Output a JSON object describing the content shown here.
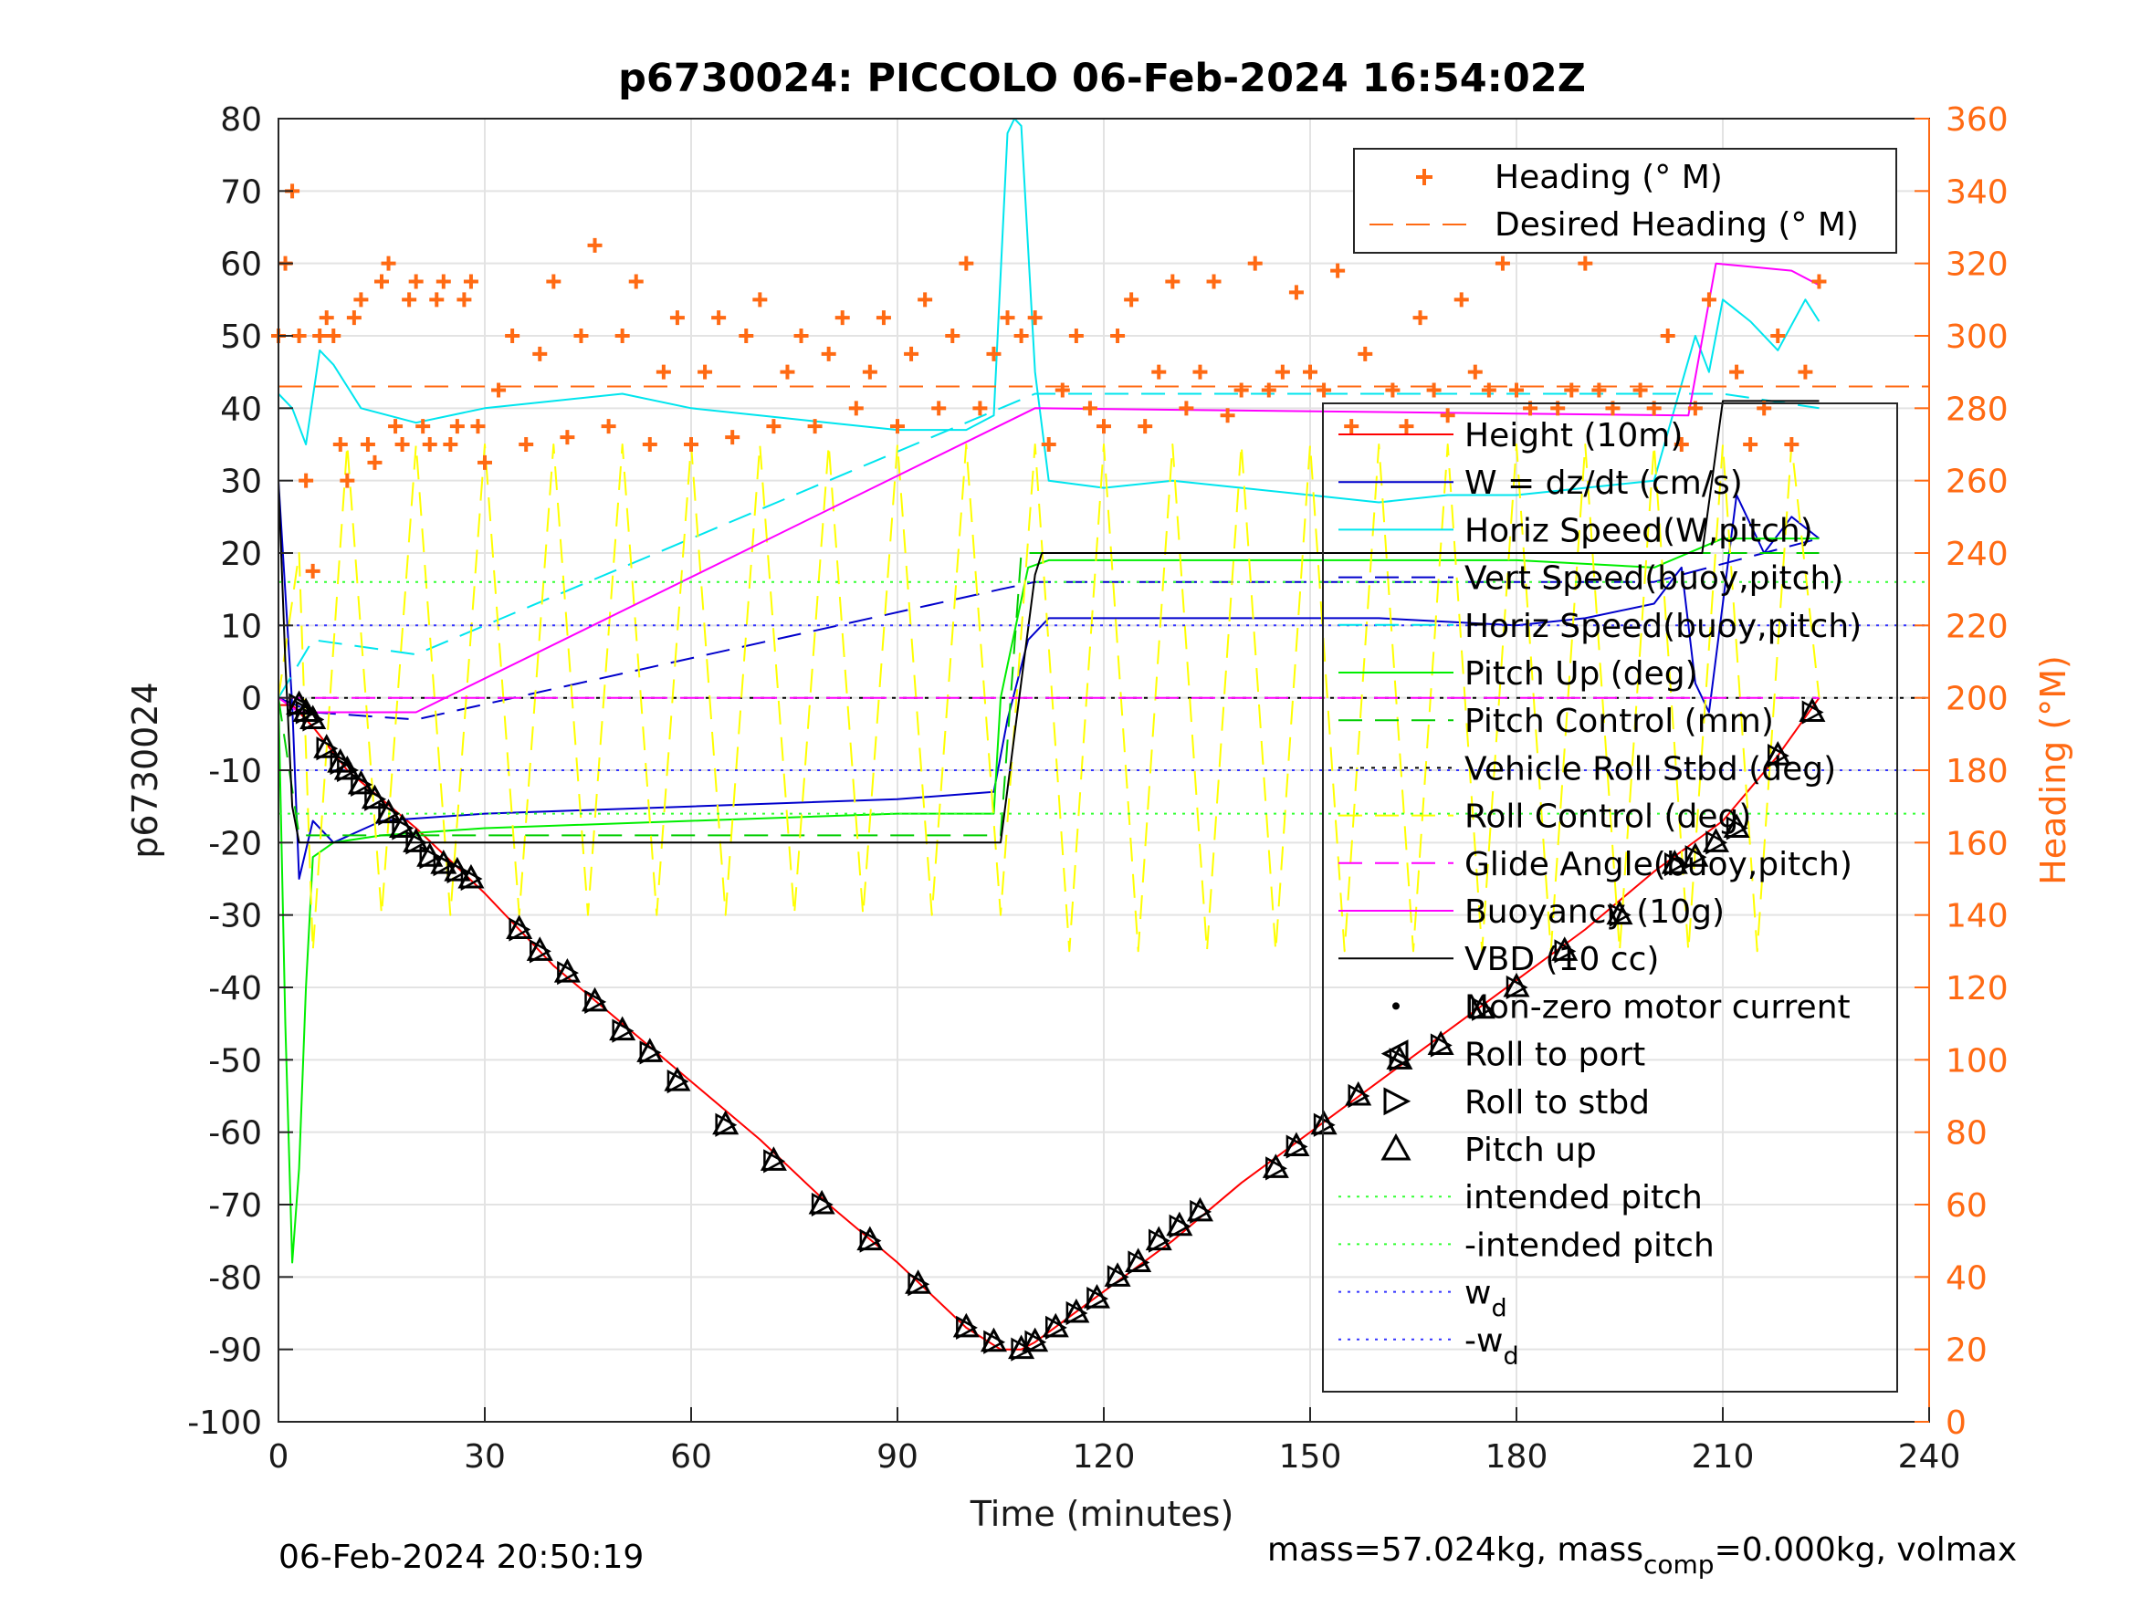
{
  "chart_data": {
    "type": "line",
    "title": "p6730024: PICCOLO 06-Feb-2024 16:54:02Z",
    "xlabel": "Time (minutes)",
    "ylabel_left": "p6730024",
    "ylabel_right": "Heading (°M)",
    "xlim": [
      0,
      240
    ],
    "ylim_left": [
      -100,
      80
    ],
    "ylim_right": [
      0,
      360
    ],
    "x_ticks": [
      "0",
      "30",
      "60",
      "90",
      "120",
      "150",
      "180",
      "210",
      "240"
    ],
    "y_ticks_left": [
      "80",
      "70",
      "60",
      "50",
      "40",
      "30",
      "20",
      "10",
      "0",
      "-10",
      "-20",
      "-30",
      "-40",
      "-50",
      "-60",
      "-70",
      "-80",
      "-90",
      "-100"
    ],
    "y_ticks_right": [
      "360",
      "340",
      "320",
      "300",
      "280",
      "260",
      "240",
      "220",
      "200",
      "180",
      "160",
      "140",
      "120",
      "100",
      "80",
      "60",
      "40",
      "20",
      "0"
    ],
    "grid": true,
    "colors": {
      "heading": "#ff6a13",
      "height": "#ff0000",
      "w": "#0000cc",
      "horiz_speed_w": "#00e5ee",
      "vert_speed_buoy": "#0000cc",
      "horiz_speed_buoy": "#00e5ee",
      "pitch": "#00ee00",
      "pitch_control": "#00cc00",
      "roll": "#000000",
      "roll_control": "#ffff00",
      "glide_angle": "#ff00ff",
      "buoyancy": "#ff00ff",
      "vbd": "#000000",
      "intended_pitch": "#33ff33",
      "wd": "#3333ff"
    },
    "legend_top": {
      "placement": "top-right",
      "entries": [
        "Heading (° M)",
        "Desired Heading (° M)"
      ]
    },
    "legend_main": {
      "placement": "right",
      "entries": [
        "Height (10m)",
        "W = dz/dt (cm/s)",
        "Horiz Speed(W,pitch)",
        "Vert Speed(buoy,pitch)",
        "Horiz Speed(buoy,pitch)",
        "Pitch Up (deg)",
        "Pitch Control (mm)",
        "Vehicle Roll Stbd (deg)",
        "Roll Control (deg)",
        "Glide Angle(buoy,pitch)",
        "Buoyancy (10g)",
        "VBD (10 cc)",
        "Non-zero motor current",
        "Roll to port",
        "Roll to stbd",
        "Pitch up",
        "intended pitch",
        "-intended pitch",
        "w",
        "-w"
      ],
      "subscripts": {
        "w": "d",
        "-w": "d"
      }
    },
    "series": [
      {
        "name": "Height (10m)",
        "axis": "left",
        "x": [
          0,
          2,
          5,
          10,
          20,
          30,
          40,
          50,
          60,
          70,
          80,
          90,
          100,
          105,
          108,
          110,
          120,
          130,
          140,
          150,
          160,
          170,
          180,
          190,
          200,
          210,
          218,
          224
        ],
        "y": [
          -1,
          -1,
          -4,
          -10,
          -18,
          -27,
          -37,
          -45,
          -53,
          -61,
          -70,
          -78,
          -87,
          -90,
          -90,
          -89,
          -82,
          -75,
          -67,
          -60,
          -53,
          -46,
          -39,
          -32,
          -24,
          -17,
          -8,
          0
        ]
      },
      {
        "name": "W = dz/dt (cm/s)",
        "axis": "left",
        "x": [
          0,
          2,
          3,
          5,
          8,
          15,
          30,
          60,
          90,
          104,
          106,
          109,
          112,
          120,
          140,
          160,
          180,
          190,
          200,
          204,
          206,
          208,
          212,
          216,
          220,
          224
        ],
        "y": [
          30,
          -1,
          -25,
          -17,
          -20,
          -17,
          -16,
          -15,
          -14,
          -13,
          -3,
          8,
          11,
          11,
          11,
          11,
          10,
          11,
          13,
          18,
          2,
          -2,
          28,
          20,
          25,
          22
        ]
      },
      {
        "name": "Horiz Speed(W,pitch)",
        "axis": "left",
        "x": [
          0,
          2,
          4,
          6,
          8,
          12,
          20,
          30,
          40,
          50,
          60,
          70,
          80,
          90,
          100,
          104,
          106,
          107,
          108,
          110,
          112,
          120,
          130,
          140,
          150,
          160,
          170,
          180,
          190,
          200,
          203,
          206,
          208,
          210,
          214,
          218,
          222,
          224
        ],
        "y": [
          42,
          40,
          35,
          48,
          46,
          40,
          38,
          40,
          41,
          42,
          40,
          39,
          38,
          37,
          37,
          39,
          78,
          80,
          79,
          45,
          30,
          29,
          30,
          29,
          28,
          27,
          28,
          28,
          29,
          30,
          40,
          50,
          45,
          55,
          52,
          48,
          55,
          52
        ]
      },
      {
        "name": "Vert Speed(buoy,pitch)",
        "axis": "left",
        "x": [
          0,
          5,
          20,
          105,
          110,
          120,
          200,
          224
        ],
        "y": [
          0,
          -2,
          -3,
          15,
          16,
          16,
          16,
          22
        ]
      },
      {
        "name": "Horiz Speed(buoy,pitch)",
        "axis": "left",
        "x": [
          0,
          5,
          20,
          105,
          110,
          210,
          224
        ],
        "y": [
          0,
          8,
          6,
          40,
          42,
          42,
          40
        ]
      },
      {
        "name": "Pitch Up (deg)",
        "axis": "left",
        "x": [
          0,
          1,
          2,
          3,
          4,
          5,
          8,
          15,
          30,
          60,
          90,
          104,
          105,
          109,
          112,
          120,
          150,
          180,
          200,
          210,
          224
        ],
        "y": [
          0,
          -45,
          -78,
          -65,
          -40,
          -22,
          -20,
          -19,
          -18,
          -17,
          -16,
          -16,
          0,
          18,
          19,
          19,
          19,
          19,
          18,
          22,
          22
        ]
      },
      {
        "name": "Pitch Control (mm)",
        "axis": "left",
        "x": [
          0,
          3,
          5,
          105,
          108,
          224
        ],
        "y": [
          0,
          -19,
          -19,
          -19,
          20,
          20
        ]
      },
      {
        "name": "Vehicle Roll Stbd (deg)",
        "axis": "left",
        "x": [
          0,
          240
        ],
        "y": [
          0,
          0
        ]
      },
      {
        "name": "Roll Control (deg)",
        "axis": "left",
        "x": [
          0,
          3,
          5,
          10,
          15,
          20,
          25,
          30,
          35,
          40,
          45,
          50,
          55,
          60,
          65,
          70,
          75,
          80,
          85,
          90,
          95,
          100,
          105,
          110,
          115,
          120,
          125,
          130,
          135,
          140,
          145,
          150,
          155,
          160,
          165,
          170,
          175,
          180,
          185,
          190,
          195,
          200,
          205,
          210,
          215,
          220,
          224
        ],
        "y": [
          0,
          20,
          -35,
          35,
          -30,
          35,
          -30,
          35,
          -30,
          35,
          -30,
          35,
          -30,
          35,
          -30,
          35,
          -30,
          35,
          -30,
          35,
          -30,
          35,
          -30,
          35,
          -35,
          35,
          -35,
          35,
          -35,
          35,
          -35,
          35,
          -35,
          35,
          -35,
          35,
          -35,
          35,
          -35,
          35,
          -35,
          35,
          -35,
          35,
          -35,
          35,
          0
        ]
      },
      {
        "name": "Glide Angle(buoy,pitch)",
        "axis": "left",
        "x": [
          0,
          5,
          104,
          110,
          224
        ],
        "y": [
          0,
          0,
          0,
          0,
          0
        ]
      },
      {
        "name": "Buoyancy (10g)",
        "axis": "left",
        "x": [
          0,
          3,
          20,
          110,
          205,
          209,
          220,
          224
        ],
        "y": [
          0,
          -2,
          -2,
          40,
          39,
          60,
          59,
          57
        ]
      },
      {
        "name": "VBD (10 cc)",
        "axis": "left",
        "x": [
          0,
          1,
          2,
          3,
          105,
          110,
          111,
          207,
          210,
          224
        ],
        "y": [
          30,
          5,
          -15,
          -20,
          -20,
          17,
          20,
          20,
          41,
          41
        ]
      },
      {
        "name": "intended pitch",
        "axis": "left",
        "x": [
          0,
          240
        ],
        "y": [
          16,
          16
        ]
      },
      {
        "name": "-intended pitch",
        "axis": "left",
        "x": [
          0,
          240
        ],
        "y": [
          -16,
          -16
        ]
      },
      {
        "name": "w_d",
        "axis": "left",
        "x": [
          0,
          240
        ],
        "y": [
          10,
          10
        ]
      },
      {
        "name": "-w_d",
        "axis": "left",
        "x": [
          0,
          240
        ],
        "y": [
          -10,
          -10
        ]
      },
      {
        "name": "Desired Heading (° M)",
        "axis": "right",
        "x": [
          0,
          240
        ],
        "y": [
          286,
          286
        ]
      }
    ],
    "heading_points": {
      "name": "Heading (° M)",
      "axis": "right",
      "x": [
        0,
        1,
        2,
        3,
        4,
        5,
        6,
        7,
        8,
        9,
        10,
        11,
        12,
        13,
        14,
        15,
        16,
        17,
        18,
        19,
        20,
        21,
        22,
        23,
        24,
        25,
        26,
        27,
        28,
        29,
        30,
        32,
        34,
        36,
        38,
        40,
        42,
        44,
        46,
        48,
        50,
        52,
        54,
        56,
        58,
        60,
        62,
        64,
        66,
        68,
        70,
        72,
        74,
        76,
        78,
        80,
        82,
        84,
        86,
        88,
        90,
        92,
        94,
        96,
        98,
        100,
        102,
        104,
        106,
        108,
        110,
        112,
        114,
        116,
        118,
        120,
        122,
        124,
        126,
        128,
        130,
        132,
        134,
        136,
        138,
        140,
        142,
        144,
        146,
        148,
        150,
        152,
        154,
        156,
        158,
        160,
        162,
        164,
        166,
        168,
        170,
        172,
        174,
        176,
        178,
        180,
        182,
        184,
        186,
        188,
        190,
        192,
        194,
        196,
        198,
        200,
        202,
        204,
        206,
        208,
        210,
        212,
        214,
        216,
        218,
        220,
        222,
        224
      ],
      "y": [
        300,
        320,
        340,
        300,
        260,
        235,
        300,
        305,
        300,
        270,
        260,
        305,
        310,
        270,
        265,
        315,
        320,
        275,
        270,
        310,
        315,
        275,
        270,
        310,
        315,
        270,
        275,
        310,
        315,
        275,
        265,
        285,
        300,
        270,
        295,
        315,
        272,
        300,
        325,
        275,
        300,
        315,
        270,
        290,
        305,
        270,
        290,
        305,
        272,
        300,
        310,
        275,
        290,
        300,
        275,
        295,
        305,
        280,
        290,
        305,
        275,
        295,
        310,
        280,
        300,
        320,
        280,
        295,
        305,
        300,
        305,
        270,
        285,
        300,
        280,
        275,
        300,
        310,
        275,
        290,
        315,
        280,
        290,
        315,
        278,
        285,
        320,
        285,
        290,
        312,
        290,
        285,
        318,
        275,
        295,
        325,
        285,
        275,
        305,
        285,
        278,
        310,
        290,
        285,
        320,
        285,
        280,
        325,
        280,
        285,
        320,
        285,
        280,
        330,
        285,
        280,
        300,
        270,
        280,
        310,
        330,
        290,
        270,
        280,
        300,
        270,
        290,
        315
      ]
    },
    "marker_points": {
      "pitch_up_triangles": {
        "x": [
          3,
          4,
          5,
          7,
          9,
          10,
          12,
          14,
          16,
          18,
          20,
          22,
          24,
          26,
          28,
          35,
          38,
          42,
          46,
          50,
          54,
          58,
          65,
          72,
          79,
          86,
          93,
          100,
          104,
          108,
          110,
          113,
          116,
          119,
          122,
          125,
          128,
          131,
          134,
          145,
          148,
          152,
          157,
          163,
          169,
          175,
          180,
          187,
          195,
          203,
          206,
          209,
          212,
          218,
          223
        ],
        "y": [
          -1,
          -2,
          -3,
          -7,
          -9,
          -10,
          -12,
          -14,
          -16,
          -18,
          -20,
          -22,
          -23,
          -24,
          -25,
          -32,
          -35,
          -38,
          -42,
          -46,
          -49,
          -53,
          -59,
          -64,
          -70,
          -75,
          -81,
          -87,
          -89,
          -90,
          -89,
          -87,
          -85,
          -83,
          -80,
          -78,
          -75,
          -73,
          -71,
          -65,
          -62,
          -59,
          -55,
          -50,
          -48,
          -43,
          -40,
          -35,
          -30,
          -23,
          -22,
          -20,
          -18,
          -8,
          -2
        ]
      }
    },
    "footer_left": "06-Feb-2024 20:50:19",
    "footer_right_parts": {
      "mass": "mass=57.024kg, mass",
      "sub": "comp",
      "rest": "=0.000kg, volmax"
    }
  }
}
